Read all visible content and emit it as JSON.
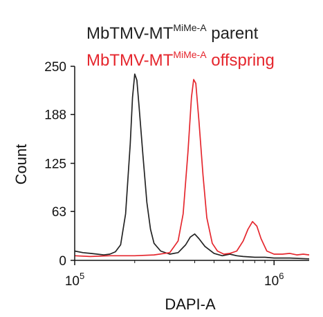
{
  "chart_data": {
    "type": "line",
    "xscale": "log",
    "xlim": [
      100000,
      1500000
    ],
    "ylim": [
      0,
      250
    ],
    "xlabel": "DAPI-A",
    "ylabel": "Count",
    "x_ticks": [
      {
        "base": "10",
        "exp": "5",
        "value": 100000
      },
      {
        "base": "10",
        "exp": "6",
        "value": 1000000
      }
    ],
    "y_ticks": [
      0,
      63,
      125,
      188,
      250
    ],
    "legend_placement": "top",
    "series": [
      {
        "legend": {
          "prefix": "MbTMV-MT",
          "sup": "MiMe-A",
          "suffix": " parent"
        },
        "color": "#222222",
        "points": [
          [
            100000,
            12
          ],
          [
            110000,
            10
          ],
          [
            120000,
            9
          ],
          [
            130000,
            8
          ],
          [
            140000,
            7
          ],
          [
            150000,
            8
          ],
          [
            160000,
            11
          ],
          [
            170000,
            20
          ],
          [
            180000,
            60
          ],
          [
            190000,
            150
          ],
          [
            195000,
            210
          ],
          [
            200000,
            240
          ],
          [
            205000,
            232
          ],
          [
            210000,
            200
          ],
          [
            220000,
            135
          ],
          [
            230000,
            75
          ],
          [
            240000,
            40
          ],
          [
            250000,
            22
          ],
          [
            270000,
            12
          ],
          [
            300000,
            8
          ],
          [
            330000,
            10
          ],
          [
            360000,
            20
          ],
          [
            380000,
            30
          ],
          [
            400000,
            34
          ],
          [
            420000,
            28
          ],
          [
            450000,
            18
          ],
          [
            500000,
            9
          ],
          [
            550000,
            6
          ],
          [
            600000,
            8
          ],
          [
            650000,
            6
          ],
          [
            700000,
            5
          ],
          [
            800000,
            4
          ],
          [
            900000,
            4
          ],
          [
            1000000,
            3
          ],
          [
            1200000,
            3
          ],
          [
            1500000,
            2
          ]
        ]
      },
      {
        "legend": {
          "prefix": "MbTMV-MT",
          "sup": "MiMe-A",
          "suffix": " offspring"
        },
        "color": "#e5262d",
        "points": [
          [
            100000,
            6
          ],
          [
            120000,
            5
          ],
          [
            150000,
            6
          ],
          [
            200000,
            6
          ],
          [
            250000,
            7
          ],
          [
            300000,
            10
          ],
          [
            330000,
            25
          ],
          [
            350000,
            60
          ],
          [
            370000,
            140
          ],
          [
            385000,
            210
          ],
          [
            395000,
            233
          ],
          [
            405000,
            228
          ],
          [
            420000,
            180
          ],
          [
            440000,
            110
          ],
          [
            460000,
            55
          ],
          [
            490000,
            22
          ],
          [
            520000,
            12
          ],
          [
            560000,
            8
          ],
          [
            600000,
            9
          ],
          [
            650000,
            12
          ],
          [
            700000,
            25
          ],
          [
            740000,
            40
          ],
          [
            780000,
            50
          ],
          [
            820000,
            44
          ],
          [
            860000,
            28
          ],
          [
            920000,
            12
          ],
          [
            1000000,
            8
          ],
          [
            1100000,
            8
          ],
          [
            1200000,
            9
          ],
          [
            1300000,
            7
          ],
          [
            1400000,
            8
          ],
          [
            1500000,
            7
          ]
        ]
      }
    ]
  }
}
